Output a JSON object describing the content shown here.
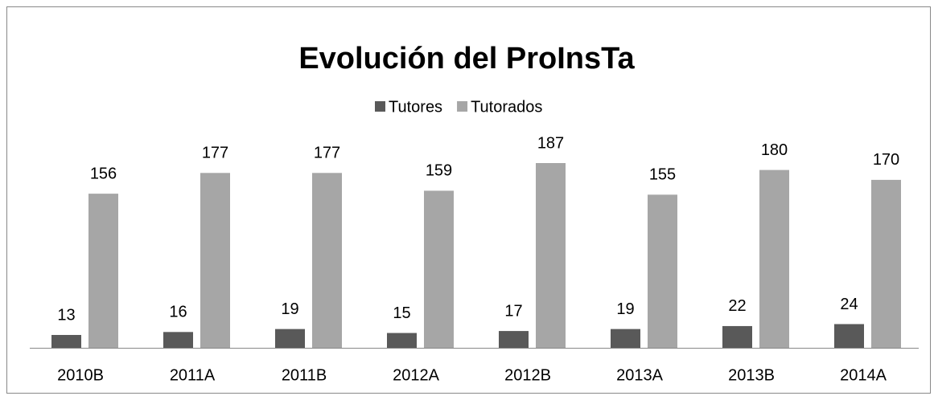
{
  "chart_data": {
    "type": "bar",
    "title": "Evolución del ProInsTa",
    "categories": [
      "2010B",
      "2011A",
      "2011B",
      "2012A",
      "2012B",
      "2013A",
      "2013B",
      "2014A"
    ],
    "series": [
      {
        "name": "Tutores",
        "color": "#595959",
        "values": [
          13,
          16,
          19,
          15,
          17,
          19,
          22,
          24
        ]
      },
      {
        "name": "Tutorados",
        "color": "#a6a6a6",
        "values": [
          156,
          177,
          177,
          159,
          187,
          155,
          180,
          170
        ]
      }
    ],
    "legend": "top"
  }
}
